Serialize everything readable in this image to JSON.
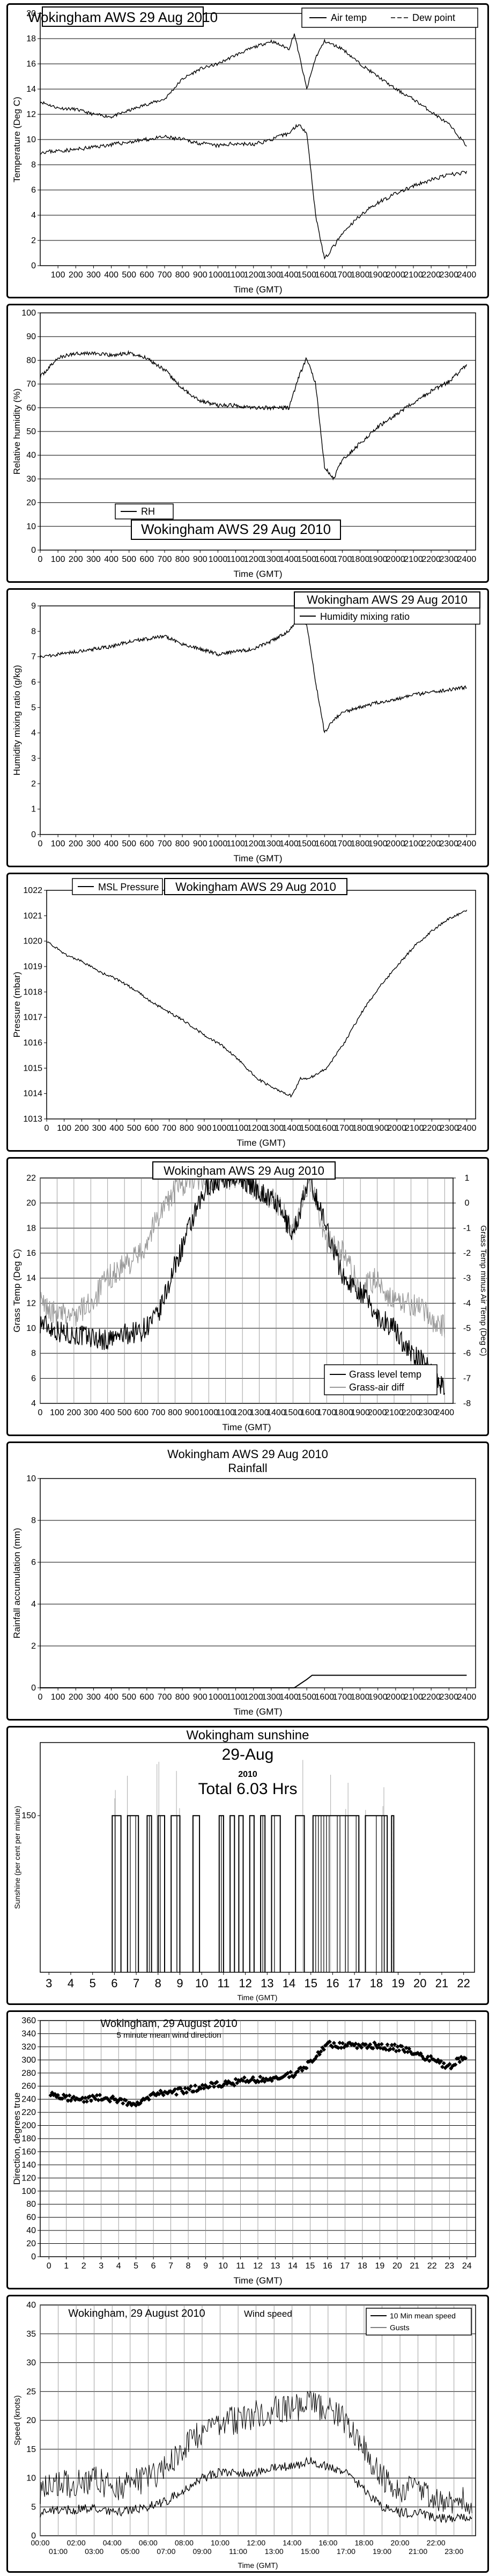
{
  "chart_data": [
    {
      "type": "line",
      "title": "Wokingham AWS 29 Aug 2010",
      "xlabel": "Time (GMT)",
      "ylabel": "Temperature (Deg C)",
      "xlim": [
        0,
        2450
      ],
      "ylim": [
        0,
        20
      ],
      "x_ticks": [
        100,
        200,
        300,
        400,
        500,
        600,
        700,
        800,
        900,
        1000,
        1100,
        1200,
        1300,
        1400,
        1500,
        1600,
        1700,
        1800,
        1900,
        2000,
        2100,
        2200,
        2300,
        2400
      ],
      "y_ticks": [
        0,
        2,
        4,
        6,
        8,
        10,
        12,
        14,
        16,
        18,
        20
      ],
      "grid": true,
      "legend_position": "top-right",
      "series": [
        {
          "name": "Air temp",
          "color": "#000000",
          "x": [
            0,
            100,
            200,
            300,
            400,
            500,
            600,
            700,
            800,
            900,
            1000,
            1100,
            1200,
            1300,
            1400,
            1430,
            1500,
            1550,
            1600,
            1700,
            1800,
            1900,
            2000,
            2100,
            2200,
            2300,
            2400
          ],
          "y": [
            13.0,
            12.5,
            12.4,
            12.0,
            11.8,
            12.3,
            12.8,
            13.2,
            14.8,
            15.6,
            16.0,
            16.7,
            17.3,
            17.8,
            17.2,
            18.4,
            14.0,
            16.5,
            17.8,
            17.2,
            16.0,
            15.0,
            14.0,
            13.2,
            12.2,
            11.2,
            9.5
          ]
        },
        {
          "name": "Dew point",
          "color": "#000000",
          "x": [
            0,
            100,
            200,
            300,
            400,
            500,
            600,
            700,
            800,
            900,
            1000,
            1100,
            1200,
            1300,
            1400,
            1450,
            1500,
            1550,
            1600,
            1650,
            1700,
            1800,
            1900,
            2000,
            2100,
            2200,
            2300,
            2400
          ],
          "y": [
            9.0,
            9.1,
            9.2,
            9.4,
            9.6,
            9.8,
            10.0,
            10.2,
            10.0,
            9.7,
            9.5,
            9.7,
            9.6,
            10.0,
            10.5,
            11.2,
            10.6,
            4.0,
            0.5,
            1.5,
            2.5,
            4.0,
            5.0,
            5.7,
            6.3,
            6.8,
            7.2,
            7.4
          ]
        }
      ]
    },
    {
      "type": "line",
      "title": "Wokingham AWS 29 Aug 2010",
      "xlabel": "Time (GMT)",
      "ylabel": "Relative humidity (%)",
      "xlim": [
        0,
        2450
      ],
      "ylim": [
        0,
        100
      ],
      "x_ticks": [
        0,
        100,
        200,
        300,
        400,
        500,
        600,
        700,
        800,
        900,
        1000,
        1100,
        1200,
        1300,
        1400,
        1500,
        1600,
        1700,
        1800,
        1900,
        2000,
        2100,
        2200,
        2300,
        2400
      ],
      "y_ticks": [
        0,
        10,
        20,
        30,
        40,
        50,
        60,
        70,
        80,
        90,
        100
      ],
      "grid": true,
      "legend_position": "bottom-left",
      "series": [
        {
          "name": "RH",
          "color": "#000000",
          "x": [
            0,
            100,
            200,
            300,
            400,
            500,
            600,
            700,
            800,
            900,
            1000,
            1100,
            1200,
            1300,
            1400,
            1450,
            1500,
            1550,
            1600,
            1650,
            1700,
            1800,
            1900,
            2000,
            2100,
            2200,
            2300,
            2400
          ],
          "y": [
            73,
            81,
            83,
            83,
            82,
            83,
            81,
            76,
            68,
            63,
            61,
            61,
            60,
            60,
            60,
            72,
            81,
            70,
            35,
            30,
            38,
            45,
            52,
            57,
            62,
            67,
            71,
            78
          ]
        }
      ]
    },
    {
      "type": "line",
      "title": "Wokingham AWS 29 Aug 2010",
      "xlabel": "Time (GMT)",
      "ylabel": "Humidity mixing ratio (g/kg)",
      "xlim": [
        0,
        2450
      ],
      "ylim": [
        0,
        9
      ],
      "x_ticks": [
        0,
        100,
        200,
        300,
        400,
        500,
        600,
        700,
        800,
        900,
        1000,
        1100,
        1200,
        1300,
        1400,
        1500,
        1600,
        1700,
        1800,
        1900,
        2000,
        2100,
        2200,
        2300,
        2400
      ],
      "y_ticks": [
        0,
        1,
        2,
        3,
        4,
        5,
        6,
        7,
        8,
        9
      ],
      "grid": false,
      "legend_position": "top-right",
      "series": [
        {
          "name": "Humidity mixing ratio",
          "color": "#000000",
          "x": [
            0,
            100,
            200,
            300,
            400,
            500,
            600,
            700,
            800,
            900,
            1000,
            1100,
            1200,
            1300,
            1400,
            1450,
            1500,
            1550,
            1600,
            1650,
            1700,
            1800,
            1900,
            2000,
            2100,
            2200,
            2300,
            2400
          ],
          "y": [
            7.0,
            7.1,
            7.2,
            7.3,
            7.4,
            7.6,
            7.7,
            7.8,
            7.5,
            7.3,
            7.1,
            7.2,
            7.3,
            7.6,
            8.0,
            8.5,
            8.3,
            6.0,
            4.0,
            4.5,
            4.8,
            5.0,
            5.2,
            5.3,
            5.5,
            5.6,
            5.7,
            5.8
          ]
        }
      ]
    },
    {
      "type": "line",
      "title": "Wokingham AWS 29 Aug 2010",
      "xlabel": "Time (GMT)",
      "ylabel": "Pressure (mbar)",
      "xlim": [
        0,
        2450
      ],
      "ylim": [
        1013,
        1022
      ],
      "x_ticks": [
        0,
        100,
        200,
        300,
        400,
        500,
        600,
        700,
        800,
        900,
        1000,
        1100,
        1200,
        1300,
        1400,
        1500,
        1600,
        1700,
        1800,
        1900,
        2000,
        2100,
        2200,
        2300,
        2400
      ],
      "y_ticks": [
        1013,
        1014,
        1015,
        1016,
        1017,
        1018,
        1019,
        1020,
        1021,
        1022
      ],
      "grid": false,
      "legend_position": "top-left",
      "series": [
        {
          "name": "MSL Pressure",
          "color": "#000000",
          "x": [
            0,
            100,
            200,
            300,
            400,
            500,
            600,
            700,
            800,
            900,
            1000,
            1100,
            1200,
            1300,
            1400,
            1450,
            1500,
            1600,
            1700,
            1800,
            1900,
            2000,
            2100,
            2200,
            2300,
            2400
          ],
          "y": [
            1020.0,
            1019.5,
            1019.2,
            1018.8,
            1018.5,
            1018.1,
            1017.6,
            1017.2,
            1016.8,
            1016.3,
            1015.9,
            1015.3,
            1014.6,
            1014.2,
            1013.9,
            1014.6,
            1014.6,
            1015.0,
            1016.0,
            1017.2,
            1018.2,
            1019.0,
            1019.8,
            1020.4,
            1020.9,
            1021.2
          ]
        }
      ]
    },
    {
      "type": "line",
      "title": "Wokingham AWS 29 Aug 2010",
      "xlabel": "Time (GMT)",
      "ylabel": "Grass Temp (Deg C)",
      "y2label": "Grass Temp minus Air Temp (Deg C)",
      "xlim": [
        0,
        2450
      ],
      "ylim": [
        4,
        22
      ],
      "y2lim": [
        -8,
        1
      ],
      "x_ticks": [
        0,
        100,
        200,
        300,
        400,
        500,
        600,
        700,
        800,
        900,
        1000,
        1100,
        1200,
        1300,
        1400,
        1500,
        1600,
        1700,
        1800,
        1900,
        2000,
        2100,
        2200,
        2300,
        2400
      ],
      "y_ticks": [
        4,
        6,
        8,
        10,
        12,
        14,
        16,
        18,
        20,
        22
      ],
      "y2_ticks": [
        -8,
        -7,
        -6,
        -5,
        -4,
        -3,
        -2,
        -1,
        0,
        1
      ],
      "grid": true,
      "legend_position": "bottom-right",
      "series": [
        {
          "name": "Grass level temp",
          "color": "#000000",
          "x": [
            0,
            100,
            200,
            300,
            400,
            500,
            600,
            700,
            800,
            900,
            1000,
            1100,
            1200,
            1300,
            1400,
            1500,
            1600,
            1700,
            1800,
            1900,
            2000,
            2100,
            2200,
            2300,
            2400
          ],
          "y": [
            10.5,
            9.8,
            9.5,
            9.3,
            9.0,
            9.5,
            9.8,
            11.0,
            15.0,
            18.5,
            21.5,
            22.0,
            22.0,
            21.0,
            20.0,
            17.5,
            22.0,
            18.0,
            14.0,
            13.0,
            11.0,
            10.0,
            8.0,
            7.0,
            5.0
          ]
        },
        {
          "name": "Grass-air diff",
          "color": "#999999",
          "axis": "right",
          "x": [
            0,
            100,
            200,
            300,
            400,
            500,
            600,
            700,
            800,
            900,
            1000,
            1100,
            1200,
            1300,
            1400,
            1500,
            1600,
            1700,
            1800,
            1900,
            2000,
            2100,
            2200,
            2300,
            2400
          ],
          "y": [
            -4.0,
            -4.5,
            -4.5,
            -4.0,
            -3.0,
            -2.5,
            -2.0,
            -0.5,
            0.5,
            1.0,
            1.0,
            1.0,
            1.0,
            0.5,
            0.0,
            -1.0,
            1.0,
            -1.5,
            -2.0,
            -3.5,
            -3.0,
            -4.0,
            -4.0,
            -4.5,
            -5.0
          ]
        }
      ]
    },
    {
      "type": "line",
      "title": "Wokingham AWS 29 Aug 2010",
      "subtitle": "Rainfall",
      "xlabel": "Time (GMT)",
      "ylabel": "Rainfall accumulation (mm)",
      "xlim": [
        0,
        2450
      ],
      "ylim": [
        0,
        10
      ],
      "x_ticks": [
        0,
        100,
        200,
        300,
        400,
        500,
        600,
        700,
        800,
        900,
        1000,
        1100,
        1200,
        1300,
        1400,
        1500,
        1600,
        1700,
        1800,
        1900,
        2000,
        2100,
        2200,
        2300,
        2400
      ],
      "y_ticks": [
        0,
        2,
        4,
        6,
        8,
        10
      ],
      "grid": true,
      "series": [
        {
          "color": "#000000",
          "x": [
            0,
            1430,
            1500,
            1530,
            2400
          ],
          "y": [
            0,
            0,
            0.4,
            0.6,
            0.6
          ]
        }
      ]
    },
    {
      "type": "bar",
      "title": "Wokingham sunshine",
      "subtitle": "29-Aug",
      "year_label": "2010",
      "total_label": "Total 6.03 Hrs",
      "xlabel": "Time (GMT)",
      "ylabel": "Sunshine (per cent per minute)",
      "xlim": [
        2.6,
        22.5
      ],
      "ylim": [
        0,
        220
      ],
      "x_ticks": [
        3,
        4,
        5,
        6,
        7,
        8,
        9,
        10,
        11,
        12,
        13,
        14,
        15,
        16,
        17,
        18,
        19,
        20,
        21,
        22
      ],
      "y_ticks": [
        150
      ],
      "sun_intervals": [
        [
          5.9,
          6.3
        ],
        [
          6.6,
          7.1
        ],
        [
          7.5,
          7.7
        ],
        [
          8.0,
          8.3
        ],
        [
          8.6,
          9.0
        ],
        [
          9.6,
          9.9
        ],
        [
          10.8,
          11.0
        ],
        [
          11.3,
          11.5
        ],
        [
          11.7,
          11.9
        ],
        [
          12.2,
          12.4
        ],
        [
          12.7,
          12.9
        ],
        [
          13.2,
          13.6
        ],
        [
          14.3,
          14.7
        ],
        [
          15.1,
          17.2
        ],
        [
          17.5,
          18.5
        ],
        [
          18.7,
          18.8
        ]
      ],
      "sun_value": 150
    },
    {
      "type": "scatter",
      "title": "Wokingham,  29 August 2010",
      "subtitle": "5 minute mean wind direction",
      "xlabel": "Time (GMT)",
      "ylabel": "Direction, degrees true",
      "xlim": [
        -0.5,
        24.5
      ],
      "ylim": [
        0,
        360
      ],
      "x_ticks": [
        0,
        1,
        2,
        3,
        4,
        5,
        6,
        7,
        8,
        9,
        10,
        11,
        12,
        13,
        14,
        15,
        16,
        17,
        18,
        19,
        20,
        21,
        22,
        23,
        24
      ],
      "y_ticks": [
        0,
        20,
        40,
        60,
        80,
        100,
        120,
        140,
        160,
        180,
        200,
        220,
        240,
        260,
        280,
        300,
        320,
        340,
        360
      ],
      "grid": true,
      "series": [
        {
          "color": "#000000",
          "x": [
            0,
            1,
            2,
            3,
            4,
            5,
            6,
            7,
            8,
            9,
            10,
            11,
            12,
            13,
            14,
            15,
            16,
            17,
            18,
            19,
            20,
            21,
            22,
            23,
            24
          ],
          "y": [
            252,
            242,
            240,
            243,
            240,
            232,
            248,
            250,
            255,
            260,
            262,
            268,
            270,
            272,
            278,
            295,
            325,
            322,
            320,
            322,
            318,
            312,
            300,
            290,
            308
          ]
        }
      ]
    },
    {
      "type": "line",
      "title": "Wokingham,  29 August 2010",
      "subtitle": "Wind speed",
      "xlabel": "Time (GMT)",
      "ylabel": "Speed (knots)",
      "xlim": [
        0,
        24.2
      ],
      "ylim": [
        0,
        40
      ],
      "x_ticks_top": [
        "00:00",
        "02:00",
        "04:00",
        "06:00",
        "08:00",
        "10:00",
        "12:00",
        "14:00",
        "16:00",
        "18:00",
        "20:00",
        "22:00"
      ],
      "x_ticks_bottom": [
        "01:00",
        "03:00",
        "05:00",
        "07:00",
        "09:00",
        "11:00",
        "13:00",
        "15:00",
        "17:00",
        "19:00",
        "21:00",
        "23:00"
      ],
      "y_ticks": [
        0,
        5,
        10,
        15,
        20,
        25,
        30,
        35,
        40
      ],
      "grid": true,
      "legend_position": "top-right",
      "series": [
        {
          "name": "10 Min mean speed",
          "color": "#000000",
          "x": [
            0,
            1,
            2,
            3,
            4,
            5,
            6,
            7,
            8,
            9,
            10,
            11,
            12,
            13,
            14,
            15,
            16,
            17,
            18,
            19,
            20,
            21,
            22,
            23,
            24
          ],
          "y": [
            4,
            4.5,
            4.5,
            5,
            4,
            4.5,
            5,
            6,
            8,
            10,
            11,
            11,
            11,
            12,
            12,
            13,
            12,
            11,
            8,
            5,
            4,
            4,
            3,
            3,
            3
          ]
        },
        {
          "name": "Gusts",
          "color": "#000000",
          "x": [
            0,
            1,
            2,
            3,
            4,
            5,
            6,
            7,
            8,
            9,
            10,
            11,
            12,
            13,
            14,
            15,
            16,
            17,
            18,
            19,
            20,
            21,
            22,
            23,
            24
          ],
          "y": [
            8,
            9,
            9,
            10,
            8,
            9,
            10,
            12,
            15,
            18,
            20,
            20,
            21,
            22,
            22,
            23,
            22,
            20,
            15,
            10,
            8,
            8,
            6,
            6,
            6
          ]
        }
      ]
    }
  ]
}
